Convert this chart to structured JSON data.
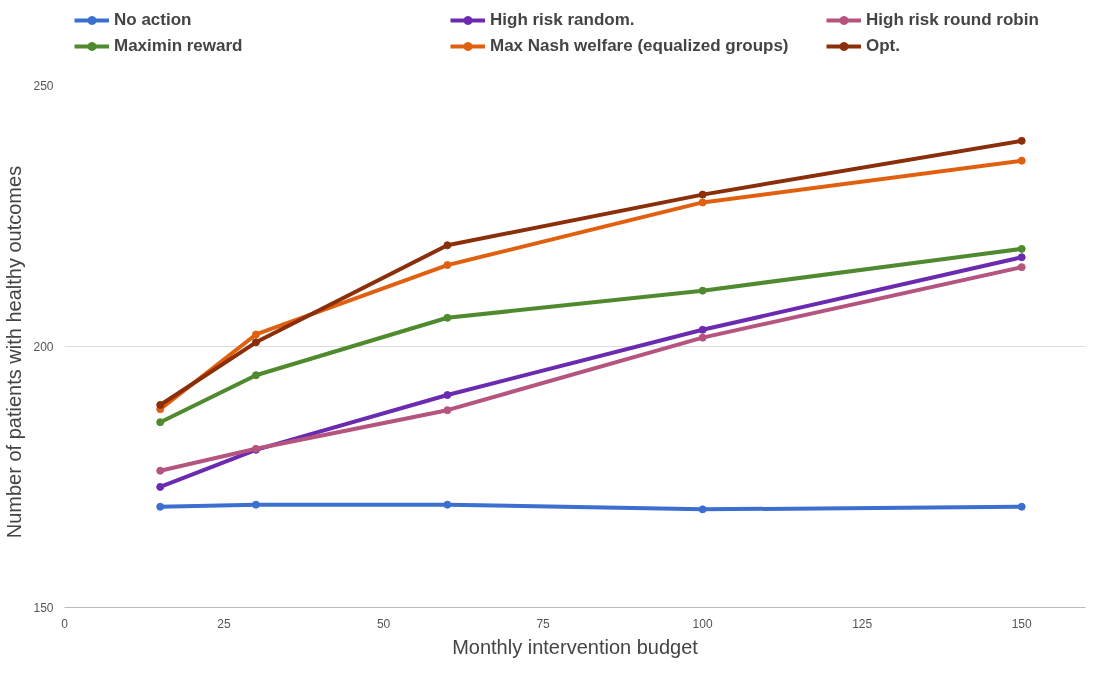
{
  "chart_data": {
    "type": "line",
    "xlabel": "Monthly intervention budget",
    "ylabel": "Number of  patients  with healthy outcomes",
    "x": [
      15,
      30,
      60,
      100,
      150
    ],
    "series": [
      {
        "name": "No action",
        "color": "#3b6fd0",
        "values": [
          169.3,
          169.7,
          169.7,
          168.8,
          169.3
        ]
      },
      {
        "name": "High risk random.",
        "color": "#6a2bb0",
        "values": [
          173.1,
          180.2,
          190.7,
          203.2,
          217.1
        ]
      },
      {
        "name": "High risk round robin",
        "color": "#b5547f",
        "values": [
          176.2,
          180.4,
          187.8,
          201.7,
          215.2
        ]
      },
      {
        "name": "Maximin reward",
        "color": "#4f8a2e",
        "values": [
          185.5,
          194.5,
          205.5,
          210.7,
          218.7
        ]
      },
      {
        "name": "Max Nash welfare (equalized groups)",
        "color": "#e06010",
        "values": [
          188,
          202.3,
          215.6,
          227.6,
          235.6
        ]
      },
      {
        "name": "Opt.",
        "color": "#8b2f0b",
        "values": [
          188.8,
          200.8,
          219.4,
          229.1,
          239.4
        ]
      }
    ],
    "xlim": [
      0,
      160
    ],
    "xticks": [
      0,
      25,
      50,
      75,
      100,
      125,
      150
    ],
    "ylim": [
      150,
      250
    ],
    "yticks": [
      150,
      200,
      250
    ],
    "grid": "y",
    "legend": "top",
    "marker": "circle",
    "line_style": "solid"
  }
}
